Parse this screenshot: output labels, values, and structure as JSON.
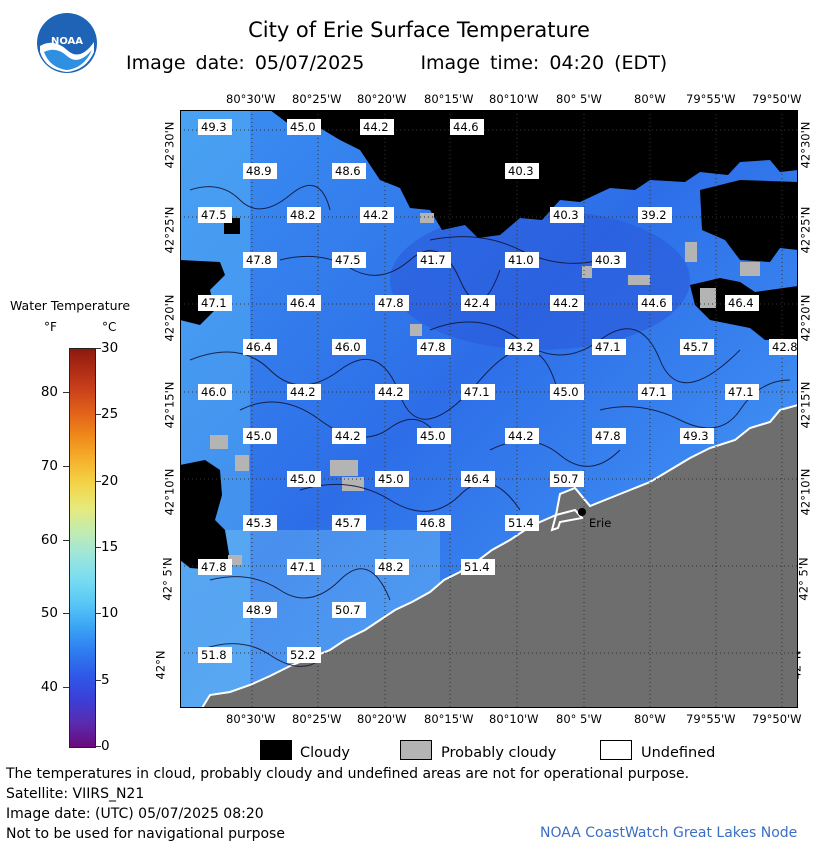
{
  "header": {
    "title": "City of Erie Surface Temperature",
    "image_date_label": "Image date: 05/07/2025",
    "image_time_label": "Image time: 04:20 (EDT)",
    "logo_text": "NOAA"
  },
  "map": {
    "top_longitudes": [
      "80°30'W",
      "80°25'W",
      "80°20'W",
      "80°15'W",
      "80°10'W",
      "80° 5'W",
      "80°W",
      "79°55'W",
      "79°50'W"
    ],
    "bottom_longitudes": [
      "80°30'W",
      "80°25'W",
      "80°20'W",
      "80°15'W",
      "80°10'W",
      "80° 5'W",
      "80°W",
      "79°55'W",
      "79°50'W"
    ],
    "latitudes": [
      "42°30'N",
      "42°25'N",
      "42°20'N",
      "42°15'N",
      "42°10'N",
      "42° 5'N",
      "42°N"
    ],
    "city_label": "Erie",
    "temperatures": [
      "49.3",
      "45.0",
      "44.2",
      "44.6",
      "48.9",
      "48.6",
      "40.3",
      "47.5",
      "48.2",
      "44.2",
      "40.3",
      "39.2",
      "47.8",
      "47.5",
      "41.7",
      "41.0",
      "40.3",
      "47.1",
      "46.4",
      "47.8",
      "42.4",
      "44.2",
      "44.6",
      "46.4",
      "46.4",
      "46.0",
      "47.8",
      "43.2",
      "47.1",
      "45.7",
      "42.8",
      "46.0",
      "44.2",
      "44.2",
      "47.1",
      "45.0",
      "47.1",
      "47.1",
      "45.0",
      "44.2",
      "45.0",
      "44.2",
      "47.8",
      "49.3",
      "45.0",
      "45.0",
      "46.4",
      "50.7",
      "45.3",
      "45.7",
      "46.8",
      "51.4",
      "47.8",
      "47.1",
      "48.2",
      "51.4",
      "48.9",
      "50.7",
      "51.8",
      "52.2"
    ]
  },
  "legend": {
    "title": "Water Temperature",
    "unit_f": "°F",
    "unit_c": "°C",
    "f_ticks": [
      "80",
      "70",
      "60",
      "50",
      "40"
    ],
    "c_ticks": [
      "30",
      "25",
      "20",
      "15",
      "10",
      "5",
      "0"
    ],
    "f_range": [
      32,
      86
    ],
    "c_range": [
      0,
      30
    ]
  },
  "key": {
    "cloudy": "Cloudy",
    "probably_cloudy": "Probably cloudy",
    "undefined": "Undefined",
    "colors": {
      "cloudy": "#000000",
      "probably_cloudy": "#b4b4b4",
      "undefined": "#ffffff",
      "land": "#6e6e6e"
    }
  },
  "footer": {
    "line1": "The temperatures in cloud, probably cloudy and undefined areas are not for operational purpose.",
    "line2": "Satellite: VIIRS_N21",
    "line3": "Image date: (UTC) 05/07/2025  08:20",
    "line4": "Not to be used for navigational purpose",
    "credit": "NOAA CoastWatch Great Lakes Node"
  }
}
